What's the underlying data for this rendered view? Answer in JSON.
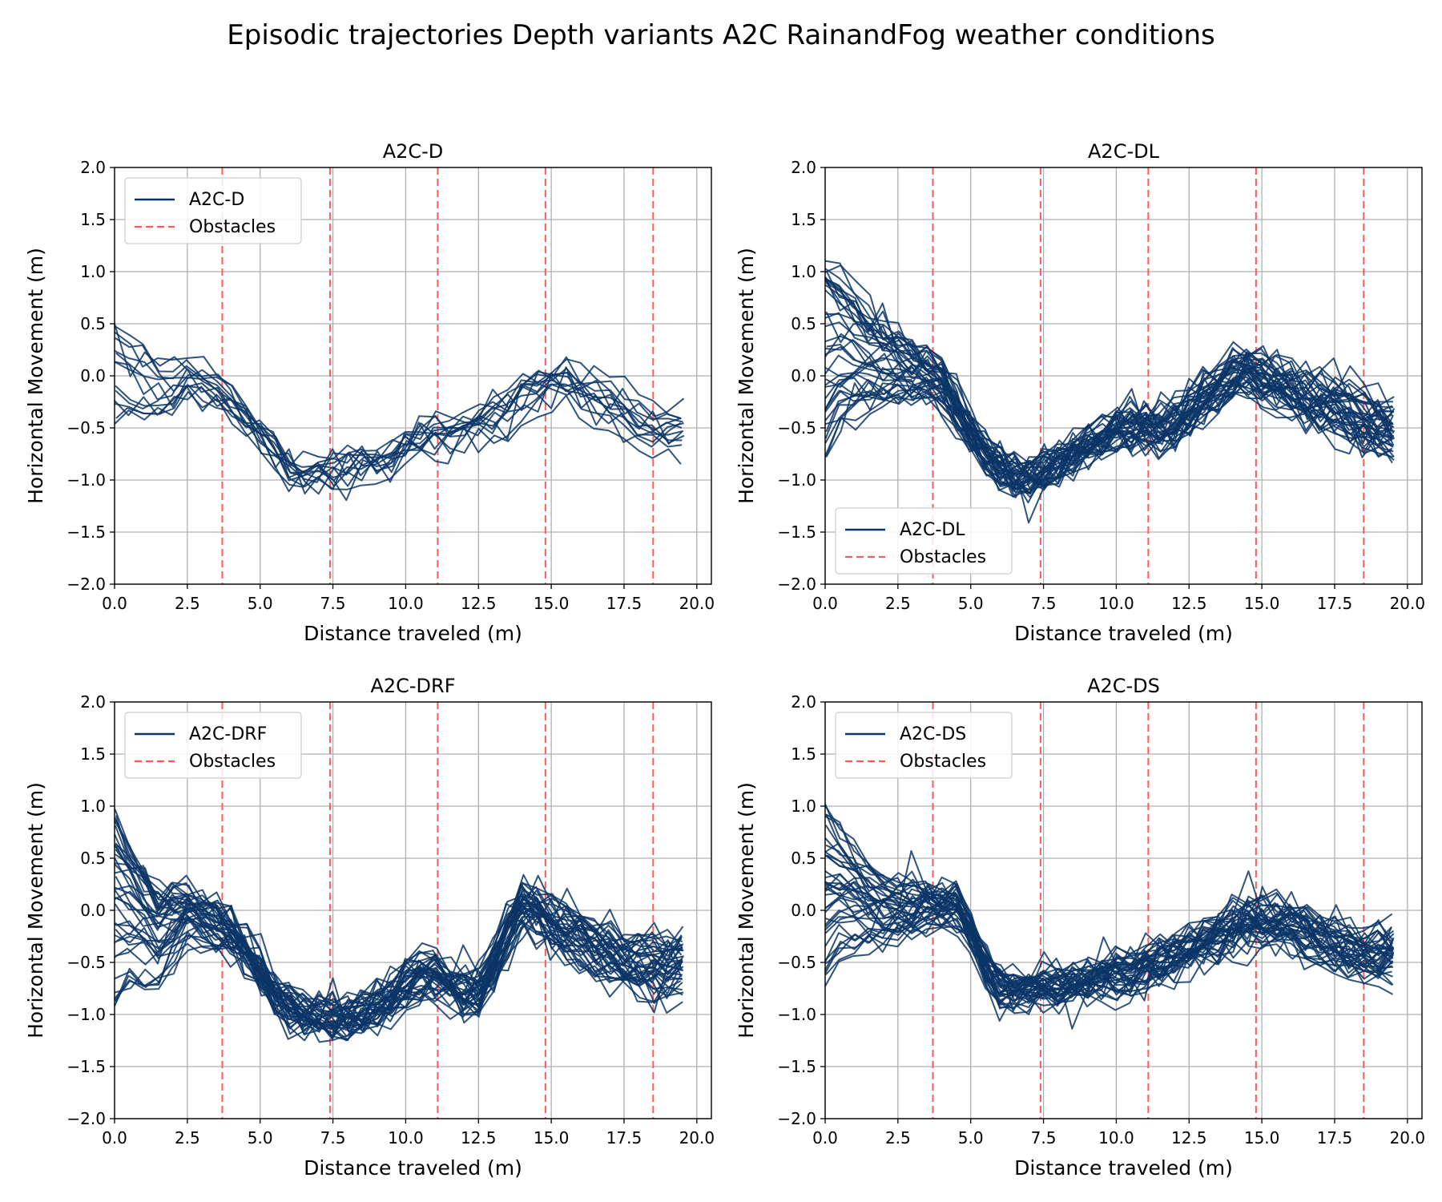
{
  "figure": {
    "title": "Episodic trajectories Depth variants A2C RainandFog weather conditions"
  },
  "colors": {
    "trajectory": "#0b3566",
    "obstacle": "#ff5a5a",
    "grid": "#b0b0b0",
    "axis": "#000000"
  },
  "chart_data": [
    {
      "type": "line",
      "title": "A2C-D",
      "xlabel": "Distance traveled (m)",
      "ylabel": "Horizontal Movement (m)",
      "xlim": [
        0,
        20.5
      ],
      "ylim": [
        -2.0,
        2.0
      ],
      "xticks": [
        "0.0",
        "2.5",
        "5.0",
        "7.5",
        "10.0",
        "12.5",
        "15.0",
        "17.5",
        "20.0"
      ],
      "yticks": [
        "2.0",
        "1.5",
        "1.0",
        "0.5",
        "0.0",
        "−0.5",
        "−1.0",
        "−1.5",
        "−2.0"
      ],
      "grid": true,
      "legend": {
        "placement": "upper-left",
        "entries": [
          "A2C-D",
          "Obstacles"
        ]
      },
      "obstacles_x": [
        3.7,
        7.4,
        11.1,
        14.8,
        18.5
      ],
      "x": [
        0.0,
        0.5,
        1.0,
        1.5,
        2.0,
        2.5,
        3.0,
        3.5,
        4.0,
        4.5,
        5.0,
        5.5,
        6.0,
        6.5,
        7.0,
        7.5,
        8.0,
        8.5,
        9.0,
        9.5,
        10.0,
        10.5,
        11.0,
        11.5,
        12.0,
        12.5,
        13.0,
        13.5,
        14.0,
        14.5,
        15.0,
        15.5,
        16.0,
        16.5,
        17.0,
        17.5,
        18.0,
        18.5,
        19.0,
        19.5
      ],
      "trajectory_count": 14,
      "mean_path": [
        0.15,
        0.05,
        -0.05,
        -0.1,
        -0.08,
        -0.05,
        -0.08,
        -0.15,
        -0.25,
        -0.4,
        -0.55,
        -0.72,
        -0.88,
        -0.95,
        -0.92,
        -0.9,
        -0.9,
        -0.88,
        -0.85,
        -0.78,
        -0.68,
        -0.6,
        -0.56,
        -0.55,
        -0.52,
        -0.46,
        -0.38,
        -0.3,
        -0.2,
        -0.12,
        -0.08,
        -0.1,
        -0.15,
        -0.2,
        -0.28,
        -0.38,
        -0.45,
        -0.5,
        -0.53,
        -0.55
      ],
      "spread": 0.6,
      "noise": 0.1
    },
    {
      "type": "line",
      "title": "A2C-DL",
      "xlabel": "Distance traveled (m)",
      "ylabel": "Horizontal Movement (m)",
      "xlim": [
        0,
        20.5
      ],
      "ylim": [
        -2.0,
        2.0
      ],
      "xticks": [
        "0.0",
        "2.5",
        "5.0",
        "7.5",
        "10.0",
        "12.5",
        "15.0",
        "17.5",
        "20.0"
      ],
      "yticks": [
        "2.0",
        "1.5",
        "1.0",
        "0.5",
        "0.0",
        "−0.5",
        "−1.0",
        "−1.5",
        "−2.0"
      ],
      "grid": true,
      "legend": {
        "placement": "lower-left",
        "entries": [
          "A2C-DL",
          "Obstacles"
        ]
      },
      "obstacles_x": [
        3.7,
        7.4,
        11.1,
        14.8,
        18.5
      ],
      "x": [
        0.0,
        0.5,
        1.0,
        1.5,
        2.0,
        2.5,
        3.0,
        3.5,
        4.0,
        4.5,
        5.0,
        5.5,
        6.0,
        6.5,
        7.0,
        7.5,
        8.0,
        8.5,
        9.0,
        9.5,
        10.0,
        10.5,
        11.0,
        11.5,
        12.0,
        12.5,
        13.0,
        13.5,
        14.0,
        14.5,
        15.0,
        15.5,
        16.0,
        16.5,
        17.0,
        17.5,
        18.0,
        18.5,
        19.0,
        19.5
      ],
      "trajectory_count": 40,
      "mean_path": [
        0.2,
        0.25,
        0.2,
        0.15,
        0.1,
        0.08,
        0.06,
        0.02,
        -0.1,
        -0.3,
        -0.55,
        -0.75,
        -0.88,
        -0.95,
        -0.96,
        -0.92,
        -0.85,
        -0.75,
        -0.65,
        -0.58,
        -0.52,
        -0.5,
        -0.5,
        -0.5,
        -0.45,
        -0.35,
        -0.22,
        -0.1,
        0.02,
        0.05,
        0.0,
        -0.05,
        -0.12,
        -0.18,
        -0.25,
        -0.3,
        -0.35,
        -0.4,
        -0.45,
        -0.5
      ],
      "spread": 0.95,
      "noise": 0.12
    },
    {
      "type": "line",
      "title": "A2C-DRF",
      "xlabel": "Distance traveled (m)",
      "ylabel": "Horizontal Movement (m)",
      "xlim": [
        0,
        20.5
      ],
      "ylim": [
        -2.0,
        2.0
      ],
      "xticks": [
        "0.0",
        "2.5",
        "5.0",
        "7.5",
        "10.0",
        "12.5",
        "15.0",
        "17.5",
        "20.0"
      ],
      "yticks": [
        "2.0",
        "1.5",
        "1.0",
        "0.5",
        "0.0",
        "−0.5",
        "−1.0",
        "−1.5",
        "−2.0"
      ],
      "grid": true,
      "legend": {
        "placement": "upper-left",
        "entries": [
          "A2C-DRF",
          "Obstacles"
        ]
      },
      "obstacles_x": [
        3.7,
        7.4,
        11.1,
        14.8,
        18.5
      ],
      "x": [
        0.0,
        0.5,
        1.0,
        1.5,
        2.0,
        2.5,
        3.0,
        3.5,
        4.0,
        4.5,
        5.0,
        5.5,
        6.0,
        6.5,
        7.0,
        7.5,
        8.0,
        8.5,
        9.0,
        9.5,
        10.0,
        10.5,
        11.0,
        11.5,
        12.0,
        12.5,
        13.0,
        13.5,
        14.0,
        14.5,
        15.0,
        15.5,
        16.0,
        16.5,
        17.0,
        17.5,
        18.0,
        18.5,
        19.0,
        19.5
      ],
      "trajectory_count": 40,
      "mean_path": [
        0.0,
        -0.05,
        -0.15,
        -0.25,
        -0.15,
        -0.05,
        -0.08,
        -0.15,
        -0.22,
        -0.4,
        -0.62,
        -0.82,
        -0.95,
        -1.0,
        -1.02,
        -1.05,
        -1.05,
        -1.0,
        -0.95,
        -0.85,
        -0.72,
        -0.62,
        -0.62,
        -0.7,
        -0.78,
        -0.8,
        -0.55,
        -0.2,
        0.0,
        -0.05,
        -0.15,
        -0.22,
        -0.3,
        -0.38,
        -0.45,
        -0.5,
        -0.55,
        -0.55,
        -0.55,
        -0.55
      ],
      "spread": 0.9,
      "noise": 0.12
    },
    {
      "type": "line",
      "title": "A2C-DS",
      "xlabel": "Distance traveled (m)",
      "ylabel": "Horizontal Movement (m)",
      "xlim": [
        0,
        20.5
      ],
      "ylim": [
        -2.0,
        2.0
      ],
      "xticks": [
        "0.0",
        "2.5",
        "5.0",
        "7.5",
        "10.0",
        "12.5",
        "15.0",
        "17.5",
        "20.0"
      ],
      "yticks": [
        "2.0",
        "1.5",
        "1.0",
        "0.5",
        "0.0",
        "−0.5",
        "−1.0",
        "−1.5",
        "−2.0"
      ],
      "grid": true,
      "legend": {
        "placement": "upper-left",
        "entries": [
          "A2C-DS",
          "Obstacles"
        ]
      },
      "obstacles_x": [
        3.7,
        7.4,
        11.1,
        14.8,
        18.5
      ],
      "x": [
        0.0,
        0.5,
        1.0,
        1.5,
        2.0,
        2.5,
        3.0,
        3.5,
        4.0,
        4.5,
        5.0,
        5.5,
        6.0,
        6.5,
        7.0,
        7.5,
        8.0,
        8.5,
        9.0,
        9.5,
        10.0,
        10.5,
        11.0,
        11.5,
        12.0,
        12.5,
        13.0,
        13.5,
        14.0,
        14.5,
        15.0,
        15.5,
        16.0,
        16.5,
        17.0,
        17.5,
        18.0,
        18.5,
        19.0,
        19.5
      ],
      "trajectory_count": 40,
      "mean_path": [
        0.15,
        0.18,
        0.12,
        0.05,
        0.0,
        0.0,
        0.02,
        0.05,
        0.05,
        0.02,
        -0.2,
        -0.55,
        -0.75,
        -0.78,
        -0.76,
        -0.75,
        -0.75,
        -0.72,
        -0.7,
        -0.65,
        -0.62,
        -0.6,
        -0.55,
        -0.5,
        -0.45,
        -0.38,
        -0.3,
        -0.22,
        -0.15,
        -0.12,
        -0.1,
        -0.12,
        -0.15,
        -0.2,
        -0.28,
        -0.35,
        -0.4,
        -0.42,
        -0.42,
        -0.4
      ],
      "spread": 0.85,
      "noise": 0.11
    }
  ]
}
